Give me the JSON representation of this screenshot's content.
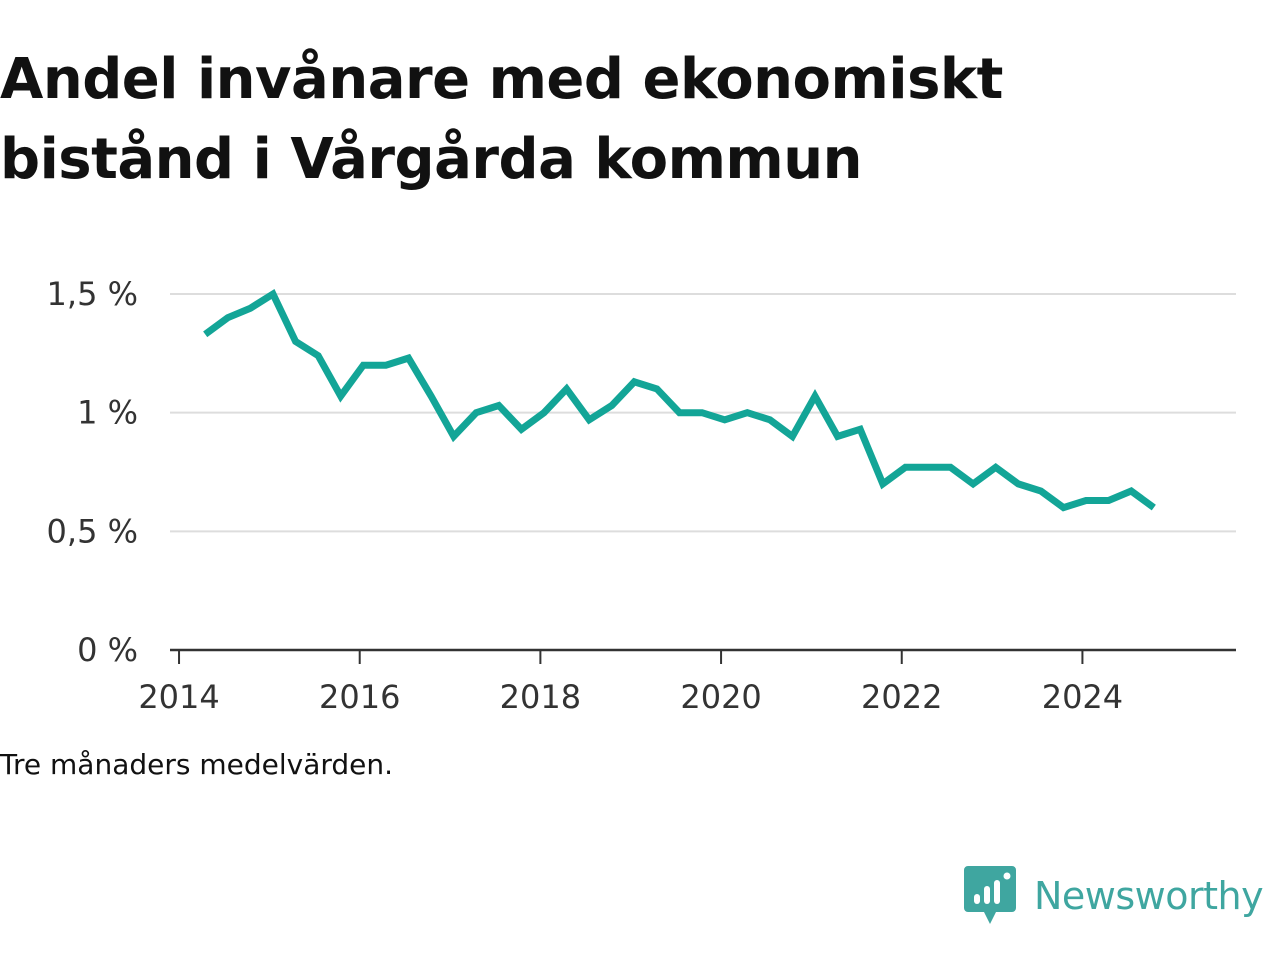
{
  "colors": {
    "line": "#13a597",
    "grid": "#dddddd",
    "axis": "#333333",
    "brand": "#3fa6a0"
  },
  "chart_data": {
    "type": "line",
    "title": "Andel invånare med ekonomiskt bistånd i Vårgårda kommun",
    "xlabel": "",
    "ylabel": "",
    "xlim": [
      2013.9,
      2025.7
    ],
    "ylim": [
      0,
      1.5
    ],
    "x_ticks": [
      2014,
      2016,
      2018,
      2020,
      2022,
      2024
    ],
    "x_tick_labels": [
      "2014",
      "2016",
      "2018",
      "2020",
      "2022",
      "2024"
    ],
    "y_ticks": [
      0,
      0.5,
      1,
      1.5
    ],
    "y_tick_labels": [
      "0 %",
      "0,5 %",
      "1 %",
      "1,5 %"
    ],
    "grid": true,
    "legend": "none",
    "series": [
      {
        "x": [
          2014.29,
          2014.54,
          2014.79,
          2015.04,
          2015.29,
          2015.54,
          2015.79,
          2016.04,
          2016.29,
          2016.54,
          2016.79,
          2017.04,
          2017.29,
          2017.54,
          2017.79,
          2018.04,
          2018.29,
          2018.54,
          2018.79,
          2019.04,
          2019.29,
          2019.54,
          2019.79,
          2020.04,
          2020.29,
          2020.54,
          2020.79,
          2021.04,
          2021.29,
          2021.54,
          2021.79,
          2022.04,
          2022.29,
          2022.54,
          2022.79,
          2023.04,
          2023.29,
          2023.54,
          2023.79,
          2024.04,
          2024.29,
          2024.54,
          2024.79
        ],
        "values": [
          1.33,
          1.4,
          1.44,
          1.5,
          1.3,
          1.24,
          1.07,
          1.2,
          1.2,
          1.23,
          1.07,
          0.9,
          1.0,
          1.03,
          0.93,
          1.0,
          1.1,
          0.97,
          1.03,
          1.13,
          1.1,
          1.0,
          1.0,
          0.97,
          1.0,
          0.97,
          0.9,
          1.07,
          0.9,
          0.93,
          0.7,
          0.77,
          0.77,
          0.77,
          0.7,
          0.77,
          0.7,
          0.67,
          0.6,
          0.63,
          0.63,
          0.67,
          0.6
        ]
      }
    ]
  },
  "note": "Tre månaders medelvärden.",
  "brand": {
    "name": "Newsworthy",
    "icon": "newsworthy-logo-icon"
  }
}
